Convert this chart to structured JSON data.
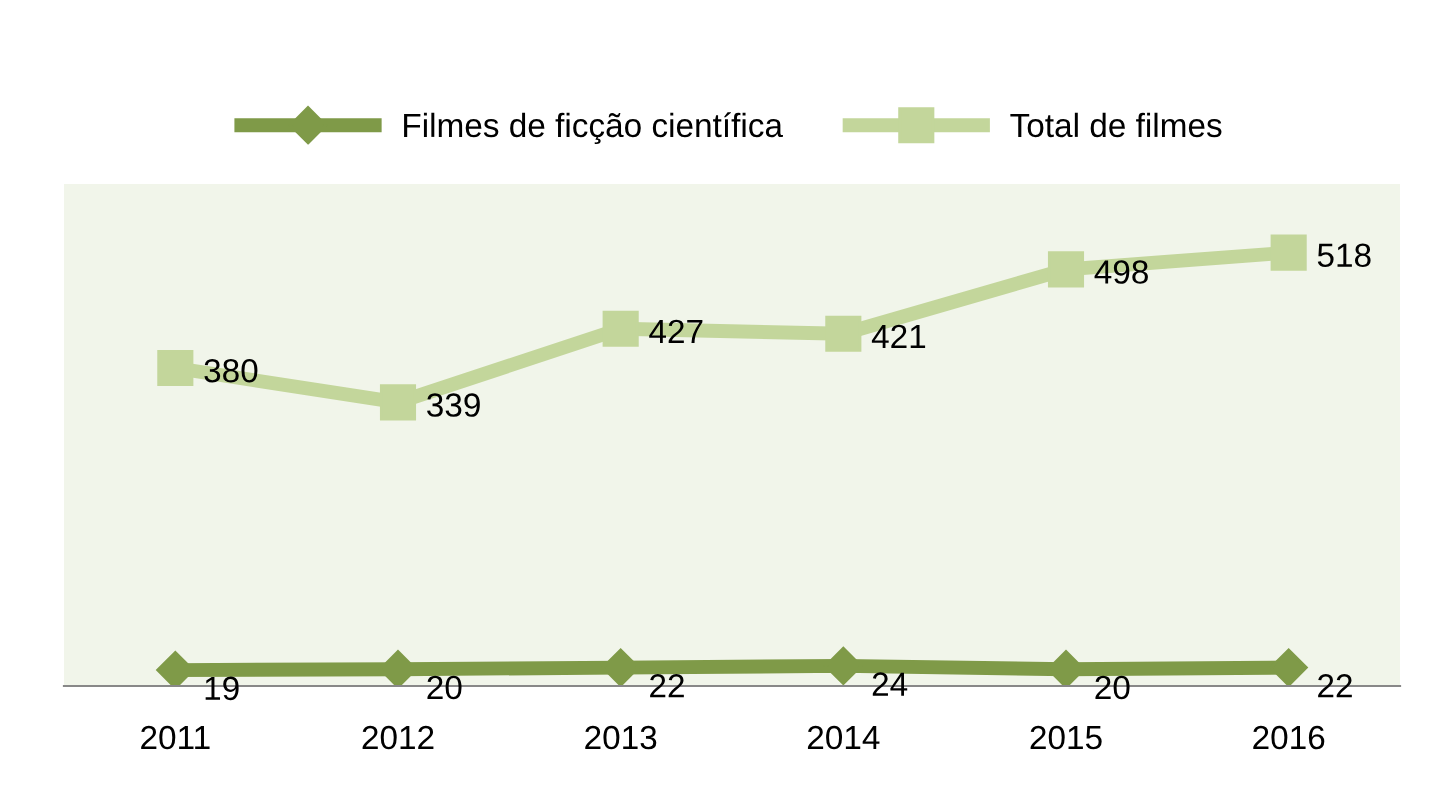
{
  "chart_data": {
    "type": "line",
    "categories": [
      "2011",
      "2012",
      "2013",
      "2014",
      "2015",
      "2016"
    ],
    "series": [
      {
        "name": "Filmes de ficção científica",
        "color": "#7f9a48",
        "marker": "diamond",
        "values": [
          19,
          20,
          22,
          24,
          20,
          22
        ]
      },
      {
        "name": "Total de filmes",
        "color": "#c3d69b",
        "marker": "square",
        "values": [
          380,
          339,
          427,
          421,
          498,
          518
        ]
      }
    ],
    "ylim": [
      0,
      600
    ],
    "tick_labels": "x",
    "data_labels": true,
    "legend": "top",
    "grid": false,
    "line_style": "solid"
  }
}
